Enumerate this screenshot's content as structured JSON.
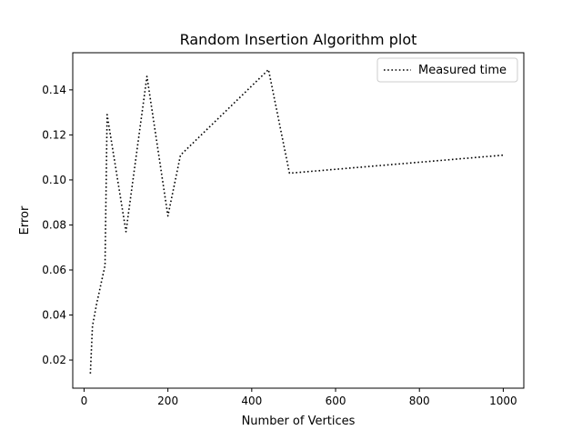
{
  "chart_data": {
    "type": "line",
    "title": "Random Insertion Algorithm plot",
    "xlabel": "Number of Vertices",
    "ylabel": "Error",
    "xlim": [
      -27,
      1049
    ],
    "ylim": [
      0.0075,
      0.1565
    ],
    "xticks": [
      0,
      200,
      400,
      600,
      800,
      1000
    ],
    "yticks": [
      0.02,
      0.04,
      0.06,
      0.08,
      0.1,
      0.12,
      0.14
    ],
    "ytick_labels": [
      "0.02",
      "0.04",
      "0.06",
      "0.08",
      "0.10",
      "0.12",
      "0.14"
    ],
    "grid": false,
    "legend_position": "top-right",
    "series": [
      {
        "name": "Measured time",
        "color": "#000000",
        "linestyle": "dotted",
        "x": [
          15,
          20,
          30,
          50,
          55,
          100,
          150,
          200,
          230,
          440,
          490,
          1000
        ],
        "y": [
          0.014,
          0.035,
          0.045,
          0.062,
          0.129,
          0.077,
          0.146,
          0.084,
          0.111,
          0.149,
          0.103,
          0.111
        ]
      }
    ]
  }
}
